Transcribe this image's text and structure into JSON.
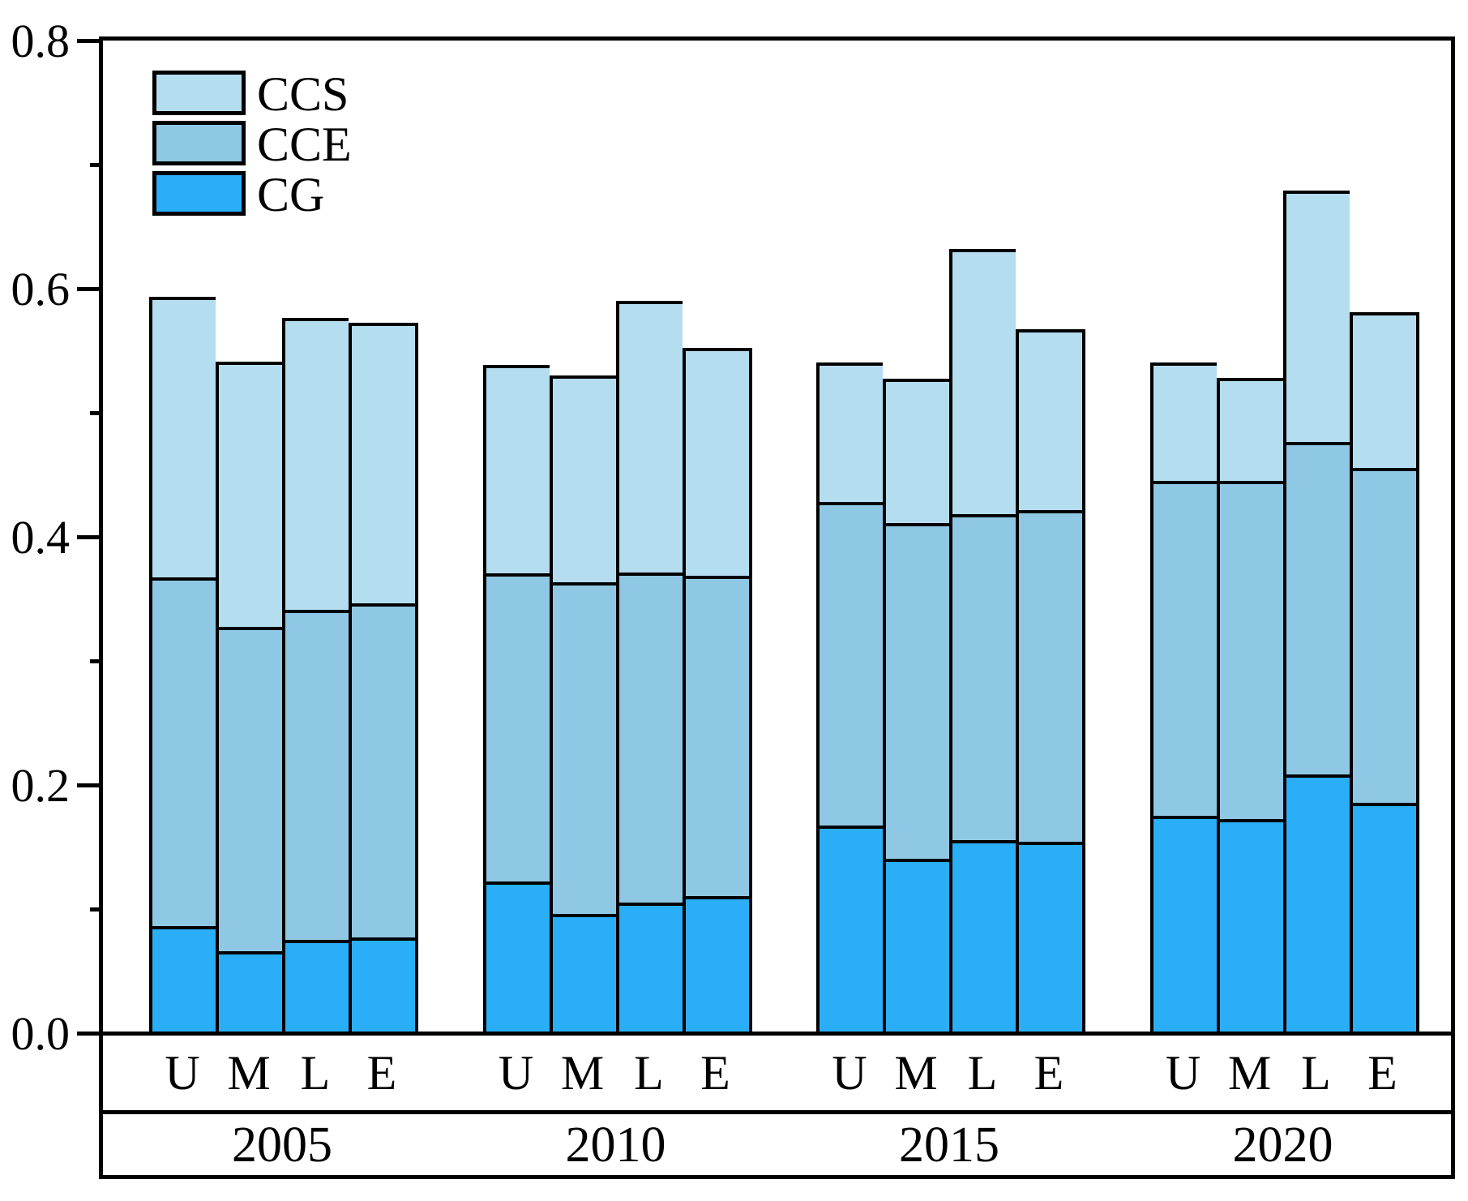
{
  "chart_data": {
    "type": "bar",
    "stacked": true,
    "title": "",
    "xlabel": "",
    "ylabel": "",
    "ylim": [
      0,
      0.8
    ],
    "grid": false,
    "legend_position": "top-left-inside",
    "y_major_ticks": [
      0,
      0.2,
      0.4,
      0.6,
      0.8
    ],
    "y_tick_labels": [
      "0.0",
      "0.2",
      "0.4",
      "0.6",
      "0.8"
    ],
    "y_minor_ticks": [
      0.1,
      0.3,
      0.5,
      0.7
    ],
    "stack_order_bottom_to_top": [
      "CG",
      "CCE",
      "CCS"
    ],
    "bar_labels": [
      "U",
      "M",
      "L",
      "E"
    ],
    "legend": [
      {
        "label": "CCS",
        "color": "#B5DDF0"
      },
      {
        "label": "CCE",
        "color": "#8FC8E4"
      },
      {
        "label": "CG",
        "color": "#2BAEF8"
      }
    ],
    "colors": {
      "CCS": "#B5DDF0",
      "CCE": "#8FC8E4",
      "CG": "#2BAEF8",
      "edge": "#000000"
    },
    "groups": [
      {
        "year": "2005",
        "bars": [
          {
            "label": "U",
            "CG": 0.085,
            "CCE": 0.281,
            "CCS": 0.226
          },
          {
            "label": "M",
            "CG": 0.065,
            "CCE": 0.261,
            "CCS": 0.214
          },
          {
            "label": "L",
            "CG": 0.074,
            "CCE": 0.266,
            "CCS": 0.235
          },
          {
            "label": "E",
            "CG": 0.076,
            "CCE": 0.269,
            "CCS": 0.226
          }
        ]
      },
      {
        "year": "2010",
        "bars": [
          {
            "label": "U",
            "CG": 0.121,
            "CCE": 0.248,
            "CCS": 0.168
          },
          {
            "label": "M",
            "CG": 0.095,
            "CCE": 0.267,
            "CCS": 0.167
          },
          {
            "label": "L",
            "CG": 0.104,
            "CCE": 0.266,
            "CCS": 0.219
          },
          {
            "label": "E",
            "CG": 0.109,
            "CCE": 0.258,
            "CCS": 0.184
          }
        ]
      },
      {
        "year": "2015",
        "bars": [
          {
            "label": "U",
            "CG": 0.166,
            "CCE": 0.261,
            "CCS": 0.112
          },
          {
            "label": "M",
            "CG": 0.139,
            "CCE": 0.271,
            "CCS": 0.116
          },
          {
            "label": "L",
            "CG": 0.154,
            "CCE": 0.263,
            "CCS": 0.214
          },
          {
            "label": "E",
            "CG": 0.153,
            "CCE": 0.267,
            "CCS": 0.146
          }
        ]
      },
      {
        "year": "2020",
        "bars": [
          {
            "label": "U",
            "CG": 0.174,
            "CCE": 0.27,
            "CCS": 0.095
          },
          {
            "label": "M",
            "CG": 0.171,
            "CCE": 0.273,
            "CCS": 0.083
          },
          {
            "label": "L",
            "CG": 0.207,
            "CCE": 0.268,
            "CCS": 0.203
          },
          {
            "label": "E",
            "CG": 0.184,
            "CCE": 0.27,
            "CCS": 0.126
          }
        ]
      }
    ]
  }
}
